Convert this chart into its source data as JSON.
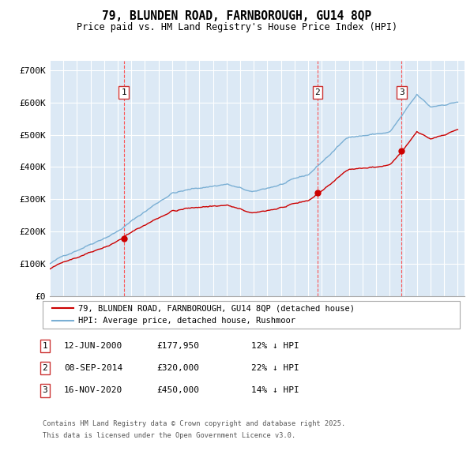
{
  "title": "79, BLUNDEN ROAD, FARNBOROUGH, GU14 8QP",
  "subtitle": "Price paid vs. HM Land Registry's House Price Index (HPI)",
  "legend_red": "79, BLUNDEN ROAD, FARNBOROUGH, GU14 8QP (detached house)",
  "legend_blue": "HPI: Average price, detached house, Rushmoor",
  "footnote1": "Contains HM Land Registry data © Crown copyright and database right 2025.",
  "footnote2": "This data is licensed under the Open Government Licence v3.0.",
  "transactions": [
    {
      "num": 1,
      "date": "12-JUN-2000",
      "price": 177950,
      "pct": "12%",
      "direction": "↓",
      "year_x": 2000.44
    },
    {
      "num": 2,
      "date": "08-SEP-2014",
      "price": 320000,
      "pct": "22%",
      "direction": "↓",
      "year_x": 2014.69
    },
    {
      "num": 3,
      "date": "16-NOV-2020",
      "price": 450000,
      "pct": "14%",
      "direction": "↓",
      "year_x": 2020.88
    }
  ],
  "ylim": [
    0,
    730000
  ],
  "xlim_start": 1995.0,
  "xlim_end": 2025.5,
  "bg_color": "#dce9f5",
  "red_color": "#cc0000",
  "blue_color": "#7aafd4",
  "grid_color": "#ffffff",
  "dashed_color": "#ff4444",
  "box_color": "#cc3333"
}
